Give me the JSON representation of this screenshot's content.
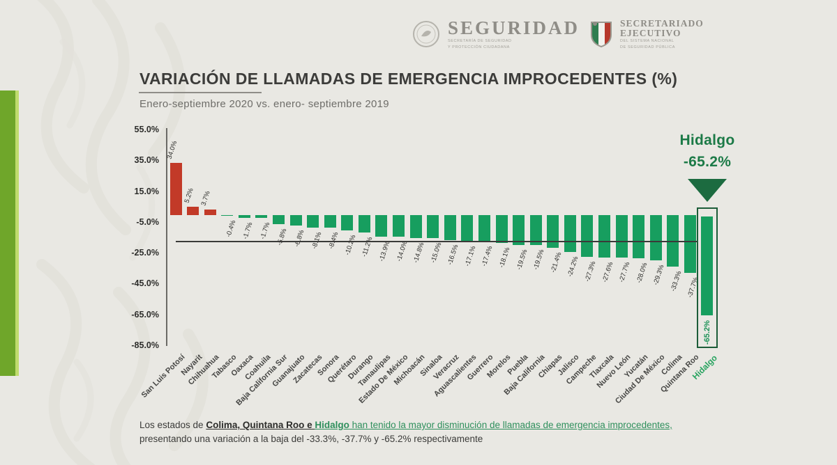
{
  "header": {
    "seguridad": {
      "title": "SEGURIDAD",
      "sub_line1": "SECRETARÍA DE SEGURIDAD",
      "sub_line2": "Y PROTECCIÓN CIUDADANA"
    },
    "secretariado": {
      "title_line1": "SECRETARIADO",
      "title_line2": "EJECUTIVO",
      "sub_line1": "DEL SISTEMA NACIONAL",
      "sub_line2": "DE SEGURIDAD PÚBLICA"
    }
  },
  "chart": {
    "title": "VARIACIÓN DE LLAMADAS DE EMERGENCIA IMPROCEDENTES (%)",
    "subtitle": "Enero-septiembre 2020  vs. enero- septiembre 2019"
  },
  "chart_data": {
    "type": "bar",
    "title": "VARIACIÓN DE LLAMADAS DE EMERGENCIA IMPROCEDENTES (%)",
    "subtitle": "Enero-septiembre 2020 vs. enero-septiembre 2019",
    "categories": [
      "San Luis Potosí",
      "Nayarit",
      "Chihuahua",
      "Tabasco",
      "Oaxaca",
      "Coahuila",
      "Baja California Sur",
      "Guanajuato",
      "Zacatecas",
      "Sonora",
      "Querétaro",
      "Durango",
      "Tamaulipas",
      "Estado De México",
      "Michoacán",
      "Sinaloa",
      "Veracruz",
      "Aguascalientes",
      "Guerrero",
      "Morelos",
      "Puebla",
      "Baja California",
      "Chiapas",
      "Jalisco",
      "Campeche",
      "Tlaxcala",
      "Nuevo León",
      "Yucatán",
      "Ciudad De México",
      "Colima",
      "Quintana Roo",
      "Hidalgo"
    ],
    "values": [
      34.0,
      5.2,
      3.7,
      -0.4,
      -1.7,
      -1.7,
      -5.8,
      -6.8,
      -8.1,
      -8.4,
      -10.2,
      -11.2,
      -13.9,
      -14.0,
      -14.8,
      -15.0,
      -16.5,
      -17.1,
      -17.4,
      -18.1,
      -19.5,
      -19.5,
      -21.4,
      -24.2,
      -27.3,
      -27.6,
      -27.7,
      -28.0,
      -29.3,
      -33.3,
      -37.7,
      -65.2
    ],
    "value_labels": [
      "34.0%",
      "5.2%",
      "3.7%",
      "-0.4%",
      "-1.7%",
      "-1.7%",
      "-5.8%",
      "-6.8%",
      "-8.1%",
      "-8.4%",
      "-10.2%",
      "-11.2%",
      "-13.9%",
      "-14.0%",
      "-14.8%",
      "-15.0%",
      "-16.5%",
      "-17.1%",
      "-17.4%",
      "-18.1%",
      "-19.5%",
      "-19.5%",
      "-21.4%",
      "-24.2%",
      "-27.3%",
      "-27.6%",
      "-27.7%",
      "-28.0%",
      "-29.3%",
      "-33.3%",
      "-37.7%",
      "-65.2%"
    ],
    "yticks": [
      "55.0%",
      "35.0%",
      "15.0%",
      "-5.0%",
      "-25.0%",
      "-45.0%",
      "-65.0%",
      "-85.0%"
    ],
    "ytick_values": [
      55,
      35,
      15,
      -5,
      -25,
      -45,
      -65,
      -85
    ],
    "ylim": [
      -85,
      55
    ],
    "grid": false,
    "legend": false,
    "reference_line_value": -17.1,
    "positive_color": "#c23a28",
    "negative_color": "#179e5f",
    "highlight": {
      "category": "Hidalgo",
      "in_box_label": "-65.2%",
      "box_border_color": "#1c5c38",
      "label_color": "#1d9257"
    }
  },
  "annotation": {
    "state": "Hidalgo",
    "value": "-65.2%"
  },
  "footer": {
    "line1_part1": "Los estados de ",
    "line1_part2": "Colima, Quintana Roo e ",
    "line1_part3": "Hidalgo",
    "line1_part4": " han tenido la mayor disminución de llamadas de emergencia improcedentes,",
    "line2": "presentando una variación a la baja del -33.3%, -37.7% y -65.2%  respectivamente"
  },
  "colors": {
    "background": "#e9e8e3",
    "accent_bar": "#6fa62a",
    "title_text": "#3c3c3a",
    "annotation_green": "#1c7a47",
    "footer_green": "#2e8f5c"
  }
}
